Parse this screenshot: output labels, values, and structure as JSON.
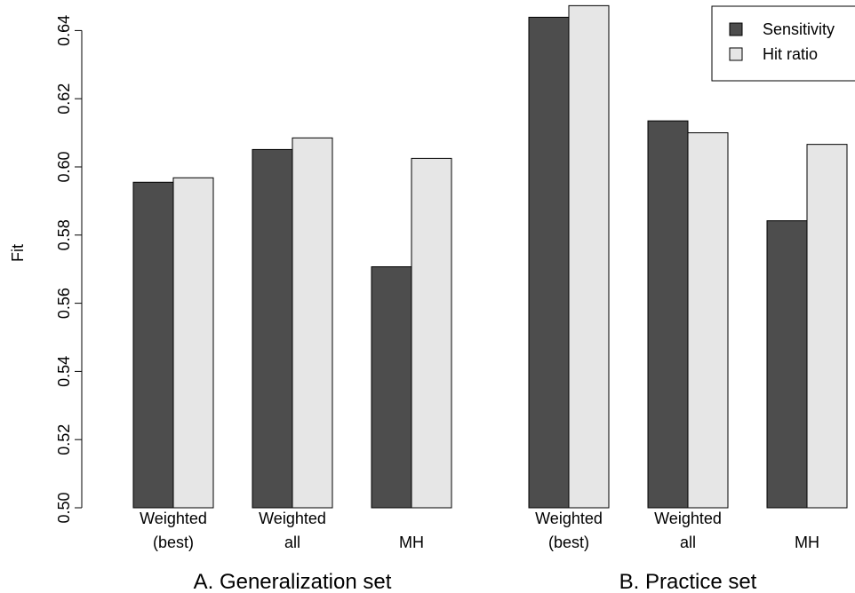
{
  "chart_data": {
    "type": "bar",
    "ylabel": "Fit",
    "ylim": [
      0.5,
      0.64
    ],
    "yticks": [
      "0.50",
      "0.52",
      "0.54",
      "0.56",
      "0.58",
      "0.60",
      "0.62",
      "0.64"
    ],
    "legend_position": "top-right",
    "series": [
      {
        "name": "Sensitivity",
        "color": "#4d4d4d"
      },
      {
        "name": "Hit ratio",
        "color": "#e6e6e6"
      }
    ],
    "groups": [
      {
        "label": "A. Generalization set",
        "categories": [
          {
            "line1": "Weighted",
            "line2": "(best)",
            "values": [
              0.5955,
              0.5968
            ]
          },
          {
            "line1": "Weighted",
            "line2": "all",
            "values": [
              0.6051,
              0.6085
            ]
          },
          {
            "line1": "",
            "line2": "MH",
            "values": [
              0.5707,
              0.6025
            ]
          }
        ]
      },
      {
        "label": "B. Practice set",
        "categories": [
          {
            "line1": "Weighted",
            "line2": "(best)",
            "values": [
              0.6439,
              0.6473
            ]
          },
          {
            "line1": "Weighted",
            "line2": "all",
            "values": [
              0.6135,
              0.61
            ]
          },
          {
            "line1": "",
            "line2": "MH",
            "values": [
              0.5842,
              0.6066
            ]
          }
        ]
      }
    ]
  }
}
